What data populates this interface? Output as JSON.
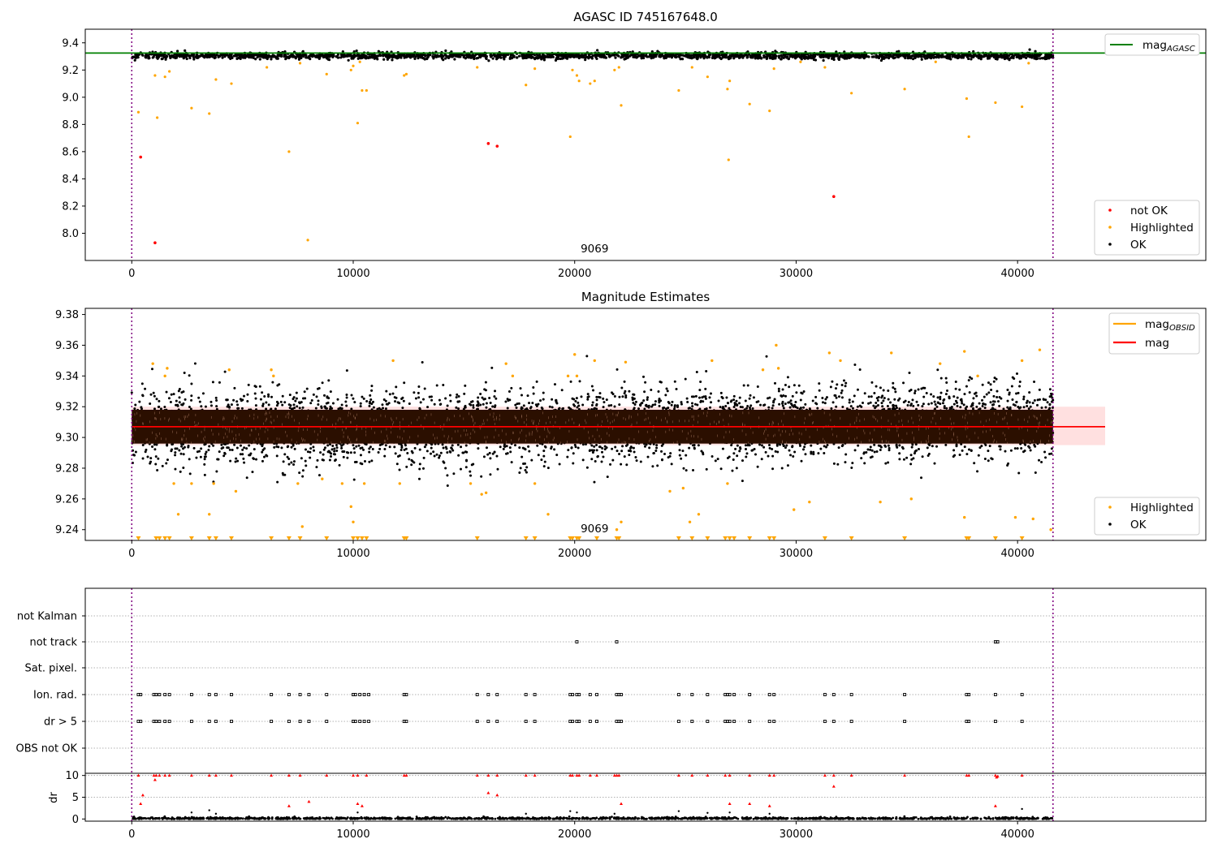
{
  "chart_data": [
    {
      "type": "scatter",
      "title": "AGASC ID 745167648.0",
      "xlim": [
        -2100,
        48500
      ],
      "ylim": [
        7.8,
        9.5
      ],
      "xticks": [
        "0",
        "10000",
        "20000",
        "30000",
        "40000"
      ],
      "yticks": [
        "8.0",
        "8.2",
        "8.4",
        "8.6",
        "8.8",
        "9.0",
        "9.2",
        "9.4"
      ],
      "mag_agasc": 9.325,
      "obs_range": [
        0,
        41600
      ],
      "annotation": {
        "x": 20900,
        "text": "9069"
      },
      "legend_lines": [
        {
          "name_base": "mag",
          "name_sub": "AGASC",
          "color": "#008000"
        }
      ],
      "legend_points": [
        {
          "name": "not OK",
          "color": "#ff0000"
        },
        {
          "name": "Highlighted",
          "color": "#ffa500"
        },
        {
          "name": "OK",
          "color": "#000000"
        }
      ],
      "band": {
        "color": "#000000",
        "y_range": [
          9.28,
          9.345
        ]
      },
      "not_ok_points": [
        [
          400,
          8.56
        ],
        [
          1050,
          7.93
        ],
        [
          16100,
          8.66
        ],
        [
          16500,
          8.64
        ],
        [
          31700,
          8.27
        ]
      ],
      "highlighted_points": [
        [
          300,
          8.89
        ],
        [
          1050,
          9.16
        ],
        [
          1150,
          8.85
        ],
        [
          1500,
          9.15
        ],
        [
          1700,
          9.19
        ],
        [
          2700,
          8.92
        ],
        [
          3500,
          8.88
        ],
        [
          3800,
          9.13
        ],
        [
          4500,
          9.1
        ],
        [
          6100,
          9.22
        ],
        [
          7100,
          8.6
        ],
        [
          7600,
          9.25
        ],
        [
          8800,
          9.17
        ],
        [
          7950,
          7.95
        ],
        [
          9900,
          9.2
        ],
        [
          10000,
          9.23
        ],
        [
          10200,
          8.81
        ],
        [
          10300,
          9.26
        ],
        [
          10400,
          9.05
        ],
        [
          10600,
          9.05
        ],
        [
          12300,
          9.16
        ],
        [
          12400,
          9.17
        ],
        [
          15600,
          9.22
        ],
        [
          17800,
          9.09
        ],
        [
          18200,
          9.21
        ],
        [
          19800,
          8.71
        ],
        [
          19900,
          9.2
        ],
        [
          20100,
          9.16
        ],
        [
          20200,
          9.12
        ],
        [
          20700,
          9.1
        ],
        [
          20900,
          9.12
        ],
        [
          21800,
          9.2
        ],
        [
          22000,
          9.22
        ],
        [
          22100,
          8.94
        ],
        [
          24700,
          9.05
        ],
        [
          25300,
          9.22
        ],
        [
          26000,
          9.15
        ],
        [
          26900,
          9.06
        ],
        [
          26950,
          8.54
        ],
        [
          27000,
          9.12
        ],
        [
          27900,
          8.95
        ],
        [
          28800,
          8.9
        ],
        [
          29000,
          9.21
        ],
        [
          30200,
          9.26
        ],
        [
          31300,
          9.22
        ],
        [
          32500,
          9.03
        ],
        [
          34900,
          9.06
        ],
        [
          36300,
          9.26
        ],
        [
          37700,
          8.99
        ],
        [
          37800,
          8.71
        ],
        [
          39000,
          8.96
        ],
        [
          40200,
          8.93
        ],
        [
          40500,
          9.25
        ]
      ]
    },
    {
      "type": "scatter",
      "title": "Magnitude Estimates",
      "xlim": [
        -2100,
        48500
      ],
      "ylim": [
        9.233,
        9.384
      ],
      "xticks": [
        "0",
        "10000",
        "20000",
        "30000",
        "40000"
      ],
      "yticks": [
        "9.24",
        "9.26",
        "9.28",
        "9.30",
        "9.32",
        "9.34",
        "9.36",
        "9.38"
      ],
      "mag": 9.307,
      "mag_band": [
        9.295,
        9.32
      ],
      "obs_range": [
        0,
        41600
      ],
      "annotation": {
        "x": 20900,
        "text": "9069"
      },
      "legend_lines": [
        {
          "name_base": "mag",
          "name_sub": "OBSID",
          "color": "#ffa500"
        },
        {
          "name_base": "mag",
          "name_sub": "",
          "color": "#ff0000"
        }
      ],
      "legend_points": [
        {
          "name": "Highlighted",
          "color": "#ffa500"
        },
        {
          "name": "OK",
          "color": "#000000"
        }
      ],
      "dense_colors": {
        "core": "#2b0f00",
        "spread": "#000000",
        "highlight": "#ffa500"
      },
      "highlighted_points": [
        [
          950,
          9.348
        ],
        [
          1500,
          9.34
        ],
        [
          1600,
          9.345
        ],
        [
          1900,
          9.27
        ],
        [
          2100,
          9.25
        ],
        [
          2700,
          9.27
        ],
        [
          3500,
          9.25
        ],
        [
          3700,
          9.27
        ],
        [
          4400,
          9.344
        ],
        [
          4700,
          9.265
        ],
        [
          6300,
          9.344
        ],
        [
          6400,
          9.34
        ],
        [
          7500,
          9.27
        ],
        [
          7700,
          9.242
        ],
        [
          8600,
          9.273
        ],
        [
          9500,
          9.27
        ],
        [
          9900,
          9.255
        ],
        [
          10000,
          9.245
        ],
        [
          10500,
          9.27
        ],
        [
          11800,
          9.35
        ],
        [
          12100,
          9.27
        ],
        [
          15300,
          9.27
        ],
        [
          15800,
          9.263
        ],
        [
          16000,
          9.264
        ],
        [
          16900,
          9.348
        ],
        [
          17200,
          9.34
        ],
        [
          18200,
          9.27
        ],
        [
          18800,
          9.25
        ],
        [
          19700,
          9.34
        ],
        [
          20000,
          9.354
        ],
        [
          20100,
          9.34
        ],
        [
          20900,
          9.35
        ],
        [
          21900,
          9.24
        ],
        [
          22100,
          9.245
        ],
        [
          22300,
          9.349
        ],
        [
          24300,
          9.265
        ],
        [
          24900,
          9.267
        ],
        [
          25200,
          9.245
        ],
        [
          25600,
          9.25
        ],
        [
          26200,
          9.35
        ],
        [
          26900,
          9.27
        ],
        [
          28500,
          9.344
        ],
        [
          29100,
          9.36
        ],
        [
          29200,
          9.345
        ],
        [
          29900,
          9.253
        ],
        [
          30600,
          9.258
        ],
        [
          31500,
          9.355
        ],
        [
          32000,
          9.35
        ],
        [
          33800,
          9.258
        ],
        [
          34300,
          9.355
        ],
        [
          35200,
          9.26
        ],
        [
          36500,
          9.348
        ],
        [
          37600,
          9.248
        ],
        [
          37600,
          9.356
        ],
        [
          38200,
          9.34
        ],
        [
          39900,
          9.248
        ],
        [
          40200,
          9.35
        ],
        [
          40700,
          9.247
        ],
        [
          41000,
          9.357
        ],
        [
          41500,
          9.24
        ]
      ],
      "lower_markers_x": [
        300,
        1100,
        1250,
        1500,
        1700,
        2700,
        3500,
        3800,
        4500,
        6300,
        7100,
        7600,
        8800,
        10000,
        10200,
        10400,
        10600,
        12300,
        12400,
        15600,
        17800,
        18200,
        19800,
        19900,
        20100,
        20200,
        21000,
        21900,
        22000,
        24700,
        25300,
        26000,
        26800,
        27000,
        27200,
        27900,
        28800,
        29000,
        31300,
        32500,
        34900,
        37700,
        37800,
        39000,
        40200
      ]
    },
    {
      "type": "scatter",
      "title": "",
      "xlim": [
        -2100,
        48500
      ],
      "xticks": [
        "0",
        "10000",
        "20000",
        "30000",
        "40000"
      ],
      "flag_labels": [
        "not Kalman",
        "not track",
        "Sat. pixel.",
        "Ion. rad.",
        "dr > 5",
        "OBS not OK"
      ],
      "dr_label": "dr",
      "dr_ticks": [
        "0",
        "5",
        "10"
      ],
      "dr_ylim": [
        -0.5,
        10.5
      ],
      "obs_range": [
        0,
        41600
      ],
      "not_track_x": [
        20100,
        21900,
        39000,
        39100
      ],
      "ion_rad_x": [
        300,
        400,
        1000,
        1100,
        1250,
        1500,
        1700,
        2700,
        3500,
        3800,
        4500,
        6300,
        7100,
        7600,
        8000,
        8800,
        10000,
        10100,
        10300,
        10500,
        10700,
        12300,
        12400,
        15600,
        16100,
        16500,
        17800,
        18200,
        19800,
        19900,
        20100,
        20200,
        20700,
        21000,
        21900,
        22000,
        22100,
        24700,
        25300,
        26000,
        26800,
        26900,
        27000,
        27200,
        27900,
        28800,
        29000,
        31300,
        31700,
        32500,
        34900,
        37700,
        37800,
        39000,
        40200
      ],
      "dr_red_points": [
        [
          300,
          10
        ],
        [
          400,
          3.5
        ],
        [
          500,
          5.5
        ],
        [
          1000,
          10
        ],
        [
          1050,
          9
        ],
        [
          1100,
          10
        ],
        [
          1250,
          10
        ],
        [
          1500,
          10
        ],
        [
          1700,
          10
        ],
        [
          2700,
          10
        ],
        [
          3500,
          10
        ],
        [
          3800,
          10
        ],
        [
          4500,
          10
        ],
        [
          6300,
          10
        ],
        [
          7100,
          10
        ],
        [
          7100,
          3
        ],
        [
          7600,
          10
        ],
        [
          8000,
          4
        ],
        [
          8800,
          10
        ],
        [
          10000,
          10
        ],
        [
          10200,
          10
        ],
        [
          10200,
          3.5
        ],
        [
          10400,
          3
        ],
        [
          10600,
          10
        ],
        [
          12300,
          10
        ],
        [
          12400,
          10
        ],
        [
          15600,
          10
        ],
        [
          16100,
          10
        ],
        [
          16100,
          6
        ],
        [
          16500,
          10
        ],
        [
          16500,
          5.5
        ],
        [
          17800,
          10
        ],
        [
          18200,
          10
        ],
        [
          19800,
          10
        ],
        [
          19900,
          10
        ],
        [
          20100,
          10
        ],
        [
          20200,
          10
        ],
        [
          20700,
          10
        ],
        [
          21000,
          10
        ],
        [
          21800,
          10
        ],
        [
          21900,
          10
        ],
        [
          22000,
          10
        ],
        [
          22100,
          3.5
        ],
        [
          24700,
          10
        ],
        [
          25300,
          10
        ],
        [
          26000,
          10
        ],
        [
          26800,
          10
        ],
        [
          27000,
          10
        ],
        [
          27000,
          3.5
        ],
        [
          27900,
          10
        ],
        [
          27900,
          3.5
        ],
        [
          28800,
          10
        ],
        [
          29000,
          10
        ],
        [
          28800,
          3
        ],
        [
          31300,
          10
        ],
        [
          31700,
          10
        ],
        [
          31700,
          7.5
        ],
        [
          32500,
          10
        ],
        [
          34900,
          10
        ],
        [
          37700,
          10
        ],
        [
          37800,
          10
        ],
        [
          39000,
          10
        ],
        [
          39050,
          9.6
        ],
        [
          39100,
          9.8
        ],
        [
          39000,
          3
        ],
        [
          40200,
          10
        ]
      ],
      "dr_black_spikes": [
        [
          2700,
          1.5
        ],
        [
          3500,
          2
        ],
        [
          3800,
          1.2
        ],
        [
          10200,
          1.5
        ],
        [
          17800,
          1.2
        ],
        [
          19800,
          1.8
        ],
        [
          20100,
          1.5
        ],
        [
          21800,
          1.2
        ],
        [
          24700,
          1.8
        ],
        [
          26000,
          1.4
        ],
        [
          27000,
          1.5
        ],
        [
          28800,
          1.2
        ],
        [
          40200,
          2.3
        ]
      ]
    }
  ]
}
